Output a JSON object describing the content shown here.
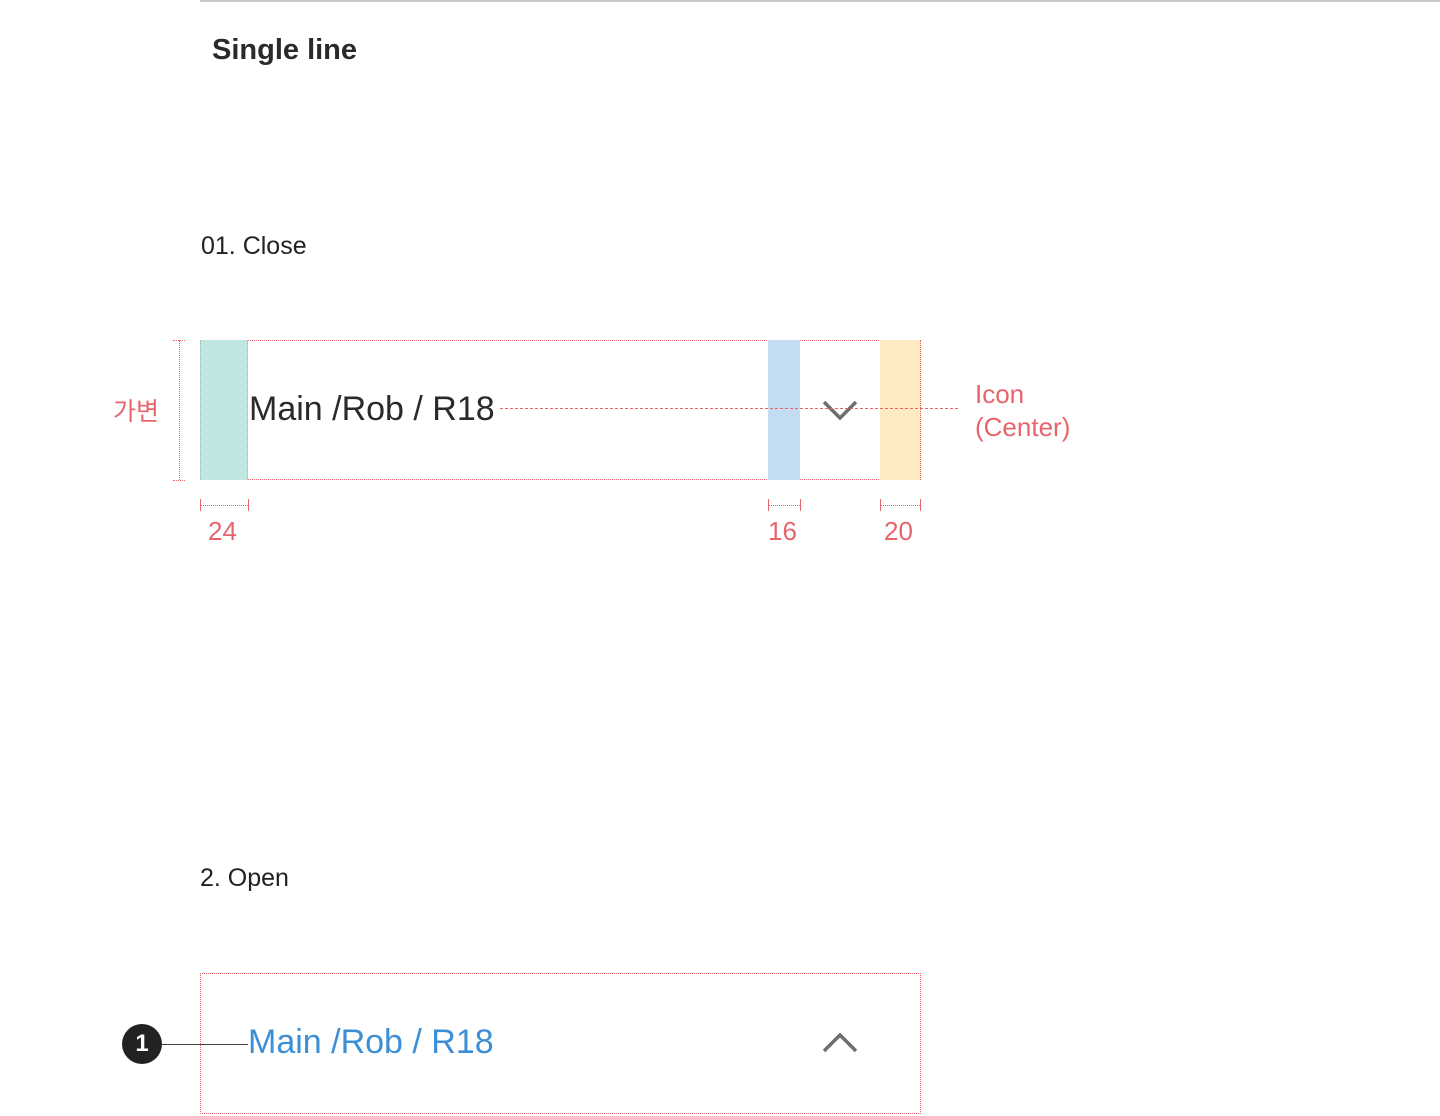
{
  "section_title": "Single line",
  "close_state": {
    "label": "01. Close",
    "item_text": "Main /Rob / R18",
    "icon": "chevron-down-icon",
    "height_annotation": "가변",
    "icon_annotation_line1": "Icon",
    "icon_annotation_line2": "(Center)",
    "spacing_left": "24",
    "spacing_icon_gap": "16",
    "spacing_right": "20"
  },
  "open_state": {
    "label": "2. Open",
    "item_text": "Main /Rob / R18",
    "icon": "chevron-up-icon",
    "callout_number": "1"
  },
  "colors": {
    "spec_red": "#e8646c",
    "left_padding_zone": "#bfe6e1",
    "icon_gap_zone": "#c3dcf1",
    "right_padding_zone": "#fde9c2",
    "selected_text": "#3c8fd6"
  }
}
